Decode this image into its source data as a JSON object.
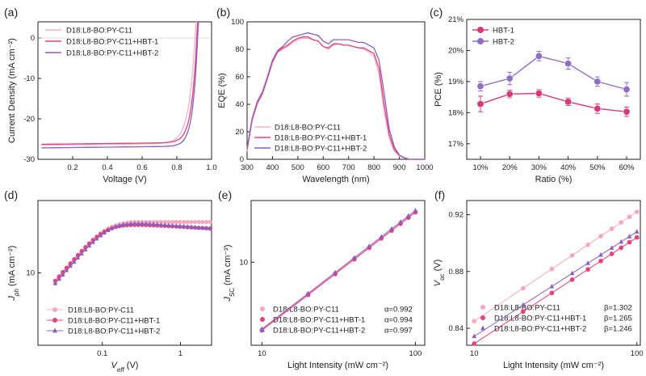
{
  "colors": {
    "pink": "#f7b3c3",
    "magenta": "#e8407a",
    "purple": "#8a5fc2",
    "darkpink": "#d63a7a",
    "lightpurple": "#8f6fc4"
  },
  "chart_data": [
    {
      "type": "line",
      "panel": "(a)",
      "xlabel": "Voltage (V)",
      "ylabel": "Current Density (mA cm⁻²)",
      "xlim": [
        0,
        1.0
      ],
      "ylim": [
        -30,
        4
      ],
      "xticks": [
        "0.2",
        "0.4",
        "0.6",
        "0.8",
        "1.0"
      ],
      "yticks": [
        "-30",
        "-20",
        "-10",
        "0"
      ],
      "series": [
        {
          "name": "D18:L8-BO:PY-C11",
          "color": "#f7b3c3",
          "jsc": -26.5,
          "voc": 0.905,
          "curv": 0.036
        },
        {
          "name": "D18:L8-BO:PY-C11+HBT-1",
          "color": "#e8407a",
          "jsc": -26.3,
          "voc": 0.915,
          "curv": 0.03
        },
        {
          "name": "D18:L8-BO:PY-C11+HBT-2",
          "color": "#8a5fc2",
          "jsc": -27.2,
          "voc": 0.92,
          "curv": 0.028
        }
      ]
    },
    {
      "type": "line",
      "panel": "(b)",
      "xlabel": "Wavelength (nm)",
      "ylabel": "EQE (%)",
      "xlim": [
        300,
        1000
      ],
      "ylim": [
        0,
        100
      ],
      "xticks": [
        "300",
        "400",
        "500",
        "600",
        "700",
        "800",
        "900",
        "1000"
      ],
      "yticks": [
        "0",
        "20",
        "40",
        "60",
        "80",
        "100"
      ],
      "x": [
        300,
        320,
        340,
        360,
        380,
        400,
        420,
        440,
        460,
        480,
        500,
        520,
        540,
        560,
        580,
        600,
        620,
        640,
        660,
        680,
        700,
        720,
        740,
        760,
        780,
        800,
        820,
        840,
        860,
        880,
        900,
        920,
        940,
        960,
        980,
        1000
      ],
      "series": [
        {
          "name": "D18:L8-BO:PY-C11",
          "color": "#f7b3c3",
          "values": [
            6,
            28,
            40,
            47,
            58,
            70,
            78,
            80,
            82,
            85,
            87,
            88,
            88,
            87,
            86,
            82,
            80,
            83,
            84,
            83,
            83,
            82,
            81,
            80,
            78,
            75,
            62,
            35,
            15,
            6,
            2,
            1,
            0,
            0,
            0,
            0
          ]
        },
        {
          "name": "D18:L8-BO:PY-C11+HBT-1",
          "color": "#e8407a",
          "values": [
            7,
            29,
            41,
            48,
            59,
            71,
            78,
            81,
            83,
            86,
            88,
            89,
            89,
            87,
            86,
            82,
            81,
            84,
            84,
            83,
            83,
            82,
            81,
            81,
            79,
            77,
            66,
            40,
            18,
            7,
            3,
            1,
            0,
            0,
            0,
            0
          ]
        },
        {
          "name": "D18:L8-BO:PY-C11+HBT-2",
          "color": "#8a5fc2",
          "values": [
            8,
            30,
            42,
            49,
            60,
            72,
            79,
            82,
            86,
            89,
            90,
            91,
            92,
            91,
            90,
            86,
            84,
            87,
            87,
            87,
            87,
            86,
            85,
            85,
            83,
            81,
            72,
            48,
            22,
            9,
            3,
            1,
            0,
            0,
            0,
            0
          ]
        }
      ]
    },
    {
      "type": "line",
      "panel": "(c)",
      "xlabel": "Ratio (%)",
      "ylabel": "PCE (%)",
      "categories": [
        "10%",
        "20%",
        "30%",
        "40%",
        "50%",
        "60%"
      ],
      "ylim": [
        16.5,
        21
      ],
      "yticks": [
        "17%",
        "18%",
        "19%",
        "20%",
        "21%"
      ],
      "series": [
        {
          "name": "HBT-1",
          "color": "#d63a7a",
          "values": [
            18.28,
            18.6,
            18.62,
            18.35,
            18.13,
            18.03
          ],
          "errors": [
            0.25,
            0.12,
            0.12,
            0.12,
            0.15,
            0.15
          ]
        },
        {
          "name": "HBT-2",
          "color": "#8f6fc4",
          "values": [
            18.85,
            19.1,
            19.82,
            19.58,
            19.0,
            18.75
          ],
          "errors": [
            0.15,
            0.2,
            0.15,
            0.18,
            0.15,
            0.22
          ]
        }
      ]
    },
    {
      "type": "scatter",
      "panel": "(d)",
      "scale": "log-log",
      "xlabel_main": "V",
      "xlabel_sub": "eff",
      "xlabel_unit": " (V)",
      "ylabel_main": "J",
      "ylabel_sub": "ph",
      "ylabel_unit": " (mA cm⁻²)",
      "xlim": [
        0.015,
        2.5
      ],
      "ylim": [
        2.5,
        40
      ],
      "xticks": [
        {
          "v": 0.1,
          "label": "0.1"
        },
        {
          "v": 1,
          "label": "1"
        }
      ],
      "yticks": [
        {
          "v": 10,
          "label": "10"
        }
      ],
      "series": [
        {
          "name": "D18:L8-BO:PY-C11",
          "color": "#f7a8bc",
          "marker": "circle",
          "jsat": 26.5,
          "vk": 0.105,
          "lowfac": 1.0
        },
        {
          "name": "D18:L8-BO:PY-C11+HBT-1",
          "color": "#e8407a",
          "marker": "circle",
          "jsat": 26.3,
          "vk": 0.108,
          "lowfac": 0.92
        },
        {
          "name": "D18:L8-BO:PY-C11+HBT-2",
          "color": "#8a5fc2",
          "marker": "triangle",
          "jsat": 27.3,
          "vk": 0.125,
          "lowfac": 0.9
        }
      ]
    },
    {
      "type": "scatter",
      "panel": "(e)",
      "scale": "log-log",
      "xlabel": "Light Intensity (mW cm⁻²)",
      "ylabel_main": "J",
      "ylabel_sub": "SC",
      "ylabel_unit": " (mA cm⁻²)",
      "xlim": [
        8.5,
        115
      ],
      "ylim": [
        2.0,
        33
      ],
      "xticks": [
        {
          "v": 10,
          "label": "10"
        },
        {
          "v": 100,
          "label": "100"
        }
      ],
      "yticks": [
        {
          "v": 10,
          "label": "10"
        }
      ],
      "x": [
        10,
        20,
        30,
        40,
        50,
        60,
        70,
        80,
        90,
        100
      ],
      "series": [
        {
          "name": "D18:L8-BO:PY-C11",
          "color": "#f7a8bc",
          "marker": "circle",
          "alpha_label": "α=0.992",
          "alpha": 0.992,
          "j100": 26.5
        },
        {
          "name": "D18:L8-BO:PY-C11+HBT-1",
          "color": "#e8407a",
          "marker": "circle",
          "alpha_label": "α=0.994",
          "alpha": 0.994,
          "j100": 26.3
        },
        {
          "name": "D18:L8-BO:PY-C11+HBT-2",
          "color": "#8a5fc2",
          "marker": "triangle",
          "alpha_label": "α=0.997",
          "alpha": 0.997,
          "j100": 27.2
        }
      ]
    },
    {
      "type": "scatter",
      "panel": "(f)",
      "scale": "log-x",
      "xlabel": "Light Intensity (mW cm⁻²)",
      "ylabel_main": "V",
      "ylabel_sub": "oc",
      "ylabel_unit": " (V)",
      "xlim": [
        9,
        105
      ],
      "ylim": [
        0.828,
        0.93
      ],
      "xticks": [
        {
          "v": 10,
          "label": "10"
        },
        {
          "v": 100,
          "label": "100"
        }
      ],
      "yticks": [
        {
          "v": 0.84,
          "label": "0.84"
        },
        {
          "v": 0.88,
          "label": "0.88"
        },
        {
          "v": 0.92,
          "label": "0.92"
        }
      ],
      "x": [
        10,
        20,
        30,
        40,
        50,
        60,
        70,
        80,
        90,
        100
      ],
      "series": [
        {
          "name": "D18:L8-BO:PY-C11",
          "color": "#f7a8bc",
          "marker": "circle",
          "beta_label": "β=1.302",
          "beta": 1.302,
          "v100": 0.922
        },
        {
          "name": "D18:L8-BO:PY-C11+HBT-1",
          "color": "#e8407a",
          "marker": "circle",
          "beta_label": "β=1.265",
          "beta": 1.265,
          "v100": 0.904
        },
        {
          "name": "D18:L8-BO:PY-C11+HBT-2",
          "color": "#8a5fc2",
          "marker": "triangle",
          "beta_label": "β=1.246",
          "beta": 1.246,
          "v100": 0.908
        }
      ]
    }
  ]
}
